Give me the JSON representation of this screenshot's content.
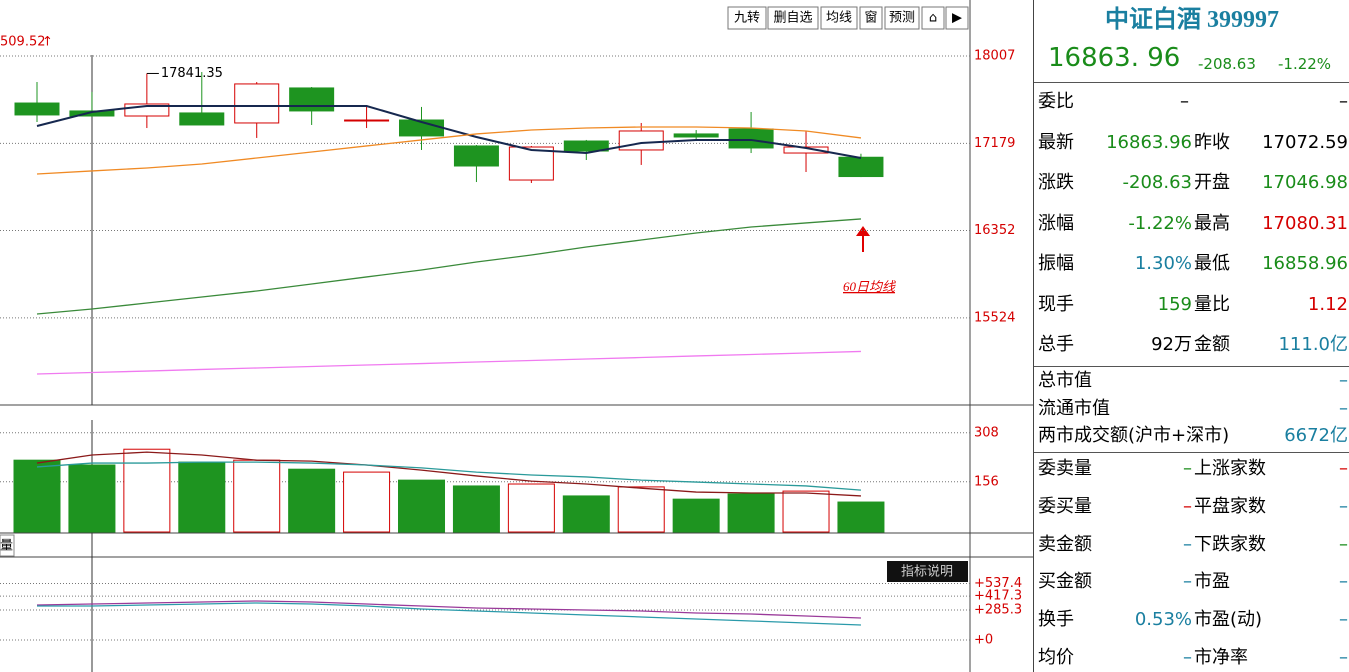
{
  "toolbar": {
    "buttons": [
      "九转",
      "删自选",
      "均线",
      "窗",
      "预测"
    ]
  },
  "chart_data": [
    {
      "type": "candlestick",
      "corner_label": "509.52",
      "annotation": "60日均线",
      "up_color": "#d40000",
      "down_color": "#1e9420",
      "open": [
        17561,
        17486,
        17438,
        17467,
        17372,
        17704,
        17391,
        17400,
        17154,
        16831,
        17201,
        17116,
        17268,
        17315,
        17087,
        17046.98
      ],
      "high": [
        17760,
        17666,
        17841.35,
        17855,
        17760,
        17713,
        17542,
        17524,
        17163,
        17154,
        17211,
        17372,
        17305,
        17476,
        17296,
        17080.31
      ],
      "low": [
        17381,
        17429,
        17324,
        17353,
        17230,
        17353,
        17324,
        17116,
        16812,
        16803,
        17021,
        16974,
        17211,
        17087,
        16907,
        16858.96
      ],
      "close": [
        17448,
        17438,
        17552,
        17353,
        17742,
        17486,
        17400,
        17249,
        16964,
        17144,
        17106,
        17296,
        17239,
        17135,
        17144,
        16863.96
      ],
      "series": [
        {
          "color": "#16284f",
          "values": [
            17343,
            17476,
            17533,
            17533,
            17533,
            17533,
            17533,
            17381,
            17239,
            17116,
            17087,
            17182,
            17211,
            17211,
            17135,
            17040
          ]
        },
        {
          "color": "#f08a24",
          "values": [
            16888,
            16917,
            16945,
            16983,
            17040,
            17097,
            17154,
            17211,
            17268,
            17305,
            17324,
            17334,
            17334,
            17324,
            17296,
            17230
          ]
        },
        {
          "color": "#3a8a3a",
          "values": [
            15561,
            15608,
            15665,
            15722,
            15779,
            15845,
            15912,
            15978,
            16054,
            16120,
            16196,
            16262,
            16329,
            16386,
            16424,
            16462
          ]
        },
        {
          "color": "#f07af0",
          "values": [
            14992,
            15006,
            15020,
            15035,
            15049,
            15063,
            15077,
            15091,
            15106,
            15120,
            15134,
            15148,
            15163,
            15177,
            15191,
            15206
          ]
        }
      ],
      "ylim": [
        14698,
        18462
      ],
      "yticks": [
        18007,
        17179,
        16352,
        15524
      ],
      "grid": true
    },
    {
      "type": "bar",
      "tab": "量",
      "values": [
        223,
        208,
        257,
        217,
        223,
        195,
        186,
        161,
        143,
        149,
        112,
        140,
        102,
        118,
        127,
        93
      ],
      "series": [
        {
          "color": "#8b1a1a",
          "values": [
            214,
            239,
            248,
            239,
            223,
            220,
            208,
            192,
            174,
            158,
            149,
            136,
            124,
            121,
            121,
            112
          ]
        },
        {
          "color": "#2a9a9a",
          "values": [
            202,
            214,
            214,
            217,
            217,
            214,
            208,
            199,
            186,
            177,
            171,
            161,
            155,
            149,
            143,
            130
          ]
        }
      ],
      "ylim": [
        0,
        385
      ],
      "yticks": [
        308,
        156
      ],
      "grid": true
    },
    {
      "type": "line",
      "button": "指标说明",
      "series": [
        {
          "color": "#9a3a9a",
          "values": [
            333,
            342,
            352,
            361,
            371,
            361,
            342,
            323,
            304,
            295,
            285,
            276,
            257,
            247,
            228,
            209
          ]
        },
        {
          "color": "#2a9aaa",
          "values": [
            323,
            323,
            333,
            342,
            352,
            342,
            323,
            295,
            276,
            257,
            238,
            219,
            200,
            181,
            162,
            143
          ]
        }
      ],
      "ylim": [
        -304,
        789
      ],
      "yticks": [
        {
          "value": 537.4,
          "label": "+537.4"
        },
        {
          "value": 417.3,
          "label": "+417.3"
        },
        {
          "value": 285.3,
          "label": "+285.3"
        },
        {
          "value": 0,
          "label": "+0"
        }
      ],
      "grid": true
    }
  ],
  "quote": {
    "title": "中证白酒 399997",
    "price": "16863. 96",
    "change": "-208.63",
    "change_pct": "-1.22%",
    "rows": [
      [
        "委比",
        "–",
        "–"
      ],
      [
        "最新",
        "16863.96",
        "昨收",
        "17072.59"
      ],
      [
        "涨跌",
        "-208.63",
        "开盘",
        "17046.98"
      ],
      [
        "涨幅",
        "-1.22%",
        "最高",
        "17080.31"
      ],
      [
        "振幅",
        "1.30%",
        "最低",
        "16858.96"
      ],
      [
        "现手",
        "159",
        "量比",
        "1.12"
      ],
      [
        "总手",
        "92万",
        "金额",
        "111.0亿"
      ]
    ],
    "market": [
      [
        "总市值",
        "–"
      ],
      [
        "流通市值",
        "–"
      ],
      [
        "两市成交额(沪市+深市)",
        "6672亿"
      ]
    ],
    "orders": [
      [
        "委卖量",
        "–",
        "上涨家数",
        "–"
      ],
      [
        "委买量",
        "–",
        "平盘家数",
        "–"
      ],
      [
        "卖金额",
        "–",
        "下跌家数",
        "–"
      ],
      [
        "买金额",
        "–",
        "市盈",
        "–"
      ],
      [
        "换手",
        "0.53%",
        "市盈(动)",
        "–"
      ],
      [
        "均价",
        "–",
        "市净率",
        "–"
      ]
    ]
  }
}
